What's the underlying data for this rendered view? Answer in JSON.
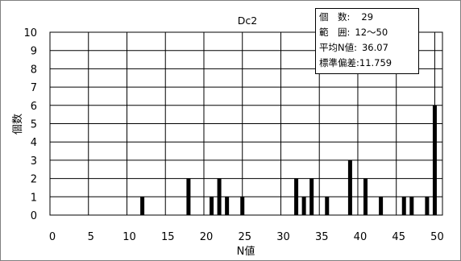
{
  "chart_data": {
    "type": "bar",
    "title": "Dc2",
    "xlabel": "N値",
    "ylabel": "個数",
    "xlim": [
      0,
      51
    ],
    "ylim": [
      0,
      10
    ],
    "x_ticks": [
      0,
      5,
      10,
      15,
      20,
      25,
      30,
      35,
      40,
      45,
      50
    ],
    "y_ticks": [
      0,
      1,
      2,
      3,
      4,
      5,
      6,
      7,
      8,
      9,
      10
    ],
    "grid": true,
    "bar_color": "#000000",
    "x": [
      12,
      18,
      21,
      22,
      23,
      25,
      32,
      33,
      34,
      36,
      39,
      41,
      43,
      46,
      47,
      49,
      50
    ],
    "values": [
      1,
      2,
      1,
      2,
      1,
      1,
      2,
      1,
      2,
      1,
      3,
      2,
      1,
      1,
      1,
      1,
      6
    ]
  },
  "stats": {
    "count_label": "個　数:",
    "count_value": "29",
    "range_label": "範　囲:",
    "range_value": "12～50",
    "mean_label": "平均N値:",
    "mean_value": "36.07",
    "sd_label": "標準偏差:",
    "sd_value": "11.759"
  }
}
